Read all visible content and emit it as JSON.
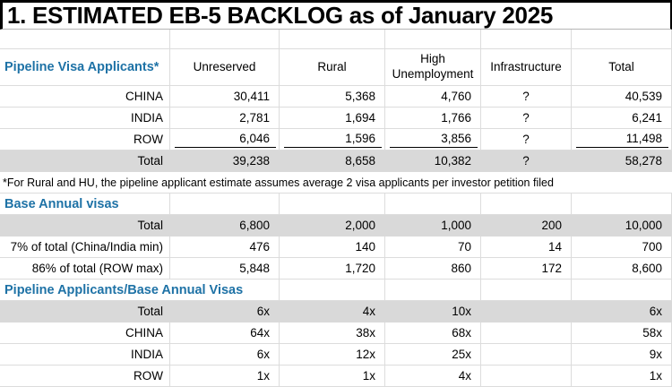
{
  "title": "1. ESTIMATED EB-5 BACKLOG as of January 2025",
  "columns": [
    "Unreserved",
    "Rural",
    "High Unemployment",
    "Infrastructure",
    "Total"
  ],
  "pipeline": {
    "header": "Pipeline Visa Applicants*",
    "rows": [
      {
        "label": "CHINA",
        "values": [
          "30,411",
          "5,368",
          "4,760",
          "?",
          "40,539"
        ]
      },
      {
        "label": "INDIA",
        "values": [
          "2,781",
          "1,694",
          "1,766",
          "?",
          "6,241"
        ]
      },
      {
        "label": "ROW",
        "values": [
          "6,046",
          "1,596",
          "3,856",
          "?",
          "11,498"
        ]
      },
      {
        "label": "Total",
        "values": [
          "39,238",
          "8,658",
          "10,382",
          "?",
          "58,278"
        ]
      }
    ],
    "footnote": "*For Rural and HU, the pipeline applicant estimate assumes average 2 visa applicants per investor petition filed"
  },
  "base_annual": {
    "header": "Base Annual visas",
    "rows": [
      {
        "label": "Total",
        "values": [
          "6,800",
          "2,000",
          "1,000",
          "200",
          "10,000"
        ]
      },
      {
        "label": "7% of total (China/India min)",
        "values": [
          "476",
          "140",
          "70",
          "14",
          "700"
        ]
      },
      {
        "label": "86% of total (ROW max)",
        "values": [
          "5,848",
          "1,720",
          "860",
          "172",
          "8,600"
        ]
      }
    ]
  },
  "ratio": {
    "header": "Pipeline Applicants/Base Annual Visas",
    "rows": [
      {
        "label": "Total",
        "values": [
          "6x",
          "4x",
          "10x",
          "",
          "6x"
        ]
      },
      {
        "label": "CHINA",
        "values": [
          "64x",
          "38x",
          "68x",
          "",
          "58x"
        ]
      },
      {
        "label": "INDIA",
        "values": [
          "6x",
          "12x",
          "25x",
          "",
          "9x"
        ]
      },
      {
        "label": "ROW",
        "values": [
          "1x",
          "1x",
          "4x",
          "",
          "1x"
        ]
      }
    ]
  },
  "colors": {
    "accent_blue": "#1e72a6",
    "total_row_fill": "#d9d9d9",
    "grid_line": "#dcdcdc"
  }
}
